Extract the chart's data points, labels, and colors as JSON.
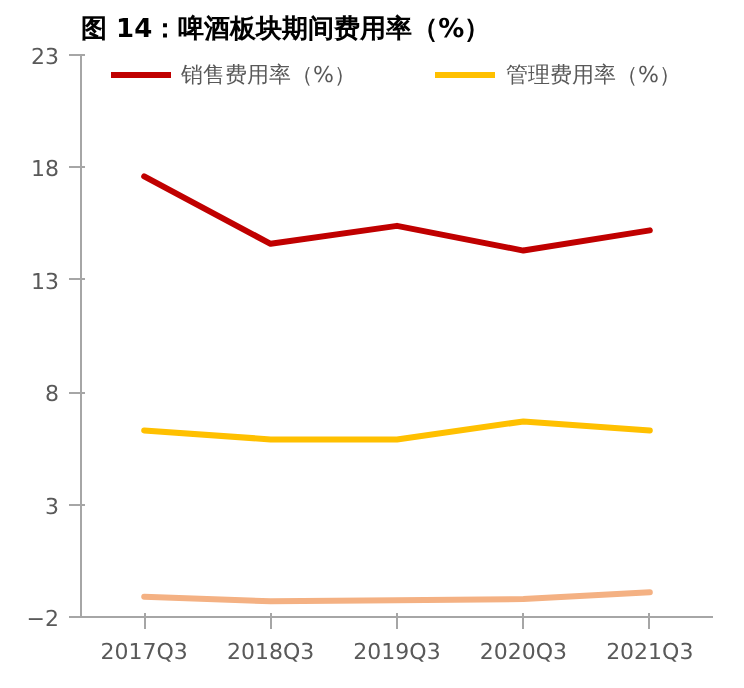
{
  "chart_data": {
    "type": "line",
    "title": "图 14：啤酒板块期间费用率（%）",
    "categories": [
      "2017Q3",
      "2018Q3",
      "2019Q3",
      "2020Q3",
      "2021Q3"
    ],
    "series": [
      {
        "name": "销售费用率（%）",
        "color": "#c00000",
        "values": [
          17.6,
          14.6,
          15.4,
          14.3,
          15.2
        ]
      },
      {
        "name": "管理费用率（%）",
        "color": "#ffc000",
        "values": [
          6.3,
          5.9,
          5.9,
          6.7,
          6.3
        ]
      },
      {
        "color": "#f4b183",
        "values": [
          -1.1,
          -1.3,
          -1.25,
          -1.2,
          -0.9
        ]
      }
    ],
    "ylim": [
      -2,
      23
    ],
    "yticks": [
      -2,
      3,
      8,
      13,
      18,
      23
    ],
    "grid": false,
    "legend": "top",
    "marker": "none",
    "line_style": "solid"
  }
}
